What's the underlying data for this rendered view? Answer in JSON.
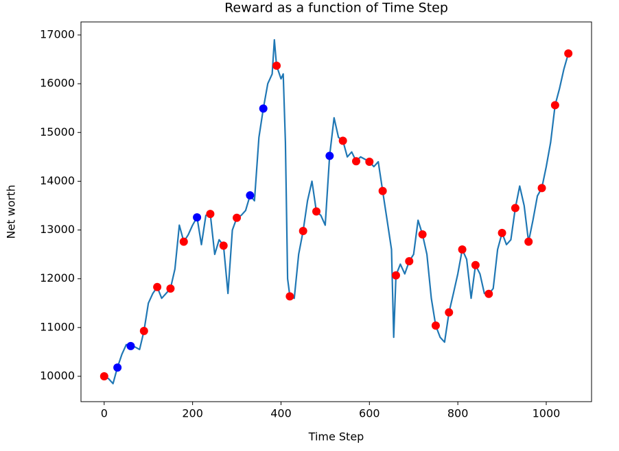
{
  "chart_data": {
    "type": "line",
    "title": "Reward as a function of Time Step",
    "x_label": "Time Step",
    "y_label": "Net worth",
    "xlim": [
      -52.5,
      1102.5
    ],
    "ylim": [
      9480,
      17267
    ],
    "xticks": [
      0,
      200,
      400,
      600,
      800,
      1000
    ],
    "yticks": [
      10000,
      11000,
      12000,
      13000,
      14000,
      15000,
      16000,
      17000
    ],
    "series": [
      {
        "type": "line",
        "color": "#1f77b4",
        "x": [
          0,
          10,
          20,
          30,
          40,
          50,
          60,
          70,
          80,
          90,
          100,
          110,
          120,
          130,
          140,
          150,
          160,
          170,
          180,
          190,
          200,
          210,
          220,
          230,
          240,
          250,
          260,
          270,
          280,
          290,
          300,
          310,
          320,
          330,
          340,
          350,
          360,
          370,
          380,
          385,
          390,
          400,
          405,
          410,
          415,
          420,
          430,
          440,
          450,
          460,
          470,
          480,
          490,
          500,
          510,
          520,
          530,
          540,
          550,
          560,
          570,
          580,
          590,
          600,
          610,
          620,
          630,
          640,
          650,
          655,
          660,
          670,
          680,
          690,
          700,
          710,
          720,
          730,
          740,
          750,
          760,
          770,
          780,
          790,
          800,
          810,
          820,
          830,
          840,
          850,
          860,
          870,
          880,
          890,
          900,
          910,
          920,
          930,
          940,
          950,
          960,
          970,
          980,
          990,
          1000,
          1010,
          1020,
          1030,
          1040,
          1050
        ],
        "values": [
          10000,
          9950,
          9850,
          10180,
          10450,
          10650,
          10620,
          10600,
          10550,
          10930,
          11500,
          11700,
          11830,
          11600,
          11700,
          11800,
          12200,
          13100,
          12760,
          12900,
          13100,
          13260,
          12700,
          13300,
          13330,
          12500,
          12800,
          12680,
          11700,
          13000,
          13250,
          13300,
          13400,
          13710,
          13600,
          14900,
          15490,
          16000,
          16200,
          16900,
          16370,
          16100,
          16200,
          14800,
          12000,
          11640,
          11600,
          12500,
          12980,
          13600,
          14000,
          13380,
          13300,
          13100,
          14520,
          15300,
          14900,
          14830,
          14500,
          14600,
          14410,
          14500,
          14450,
          14400,
          14300,
          14400,
          13800,
          13200,
          12600,
          10800,
          12070,
          12300,
          12100,
          12360,
          12500,
          13200,
          12910,
          12500,
          11600,
          11040,
          10800,
          10700,
          11310,
          11700,
          12100,
          12600,
          12400,
          11600,
          12280,
          12100,
          11700,
          11690,
          11800,
          12600,
          12940,
          12700,
          12800,
          13450,
          13900,
          13500,
          12760,
          13200,
          13700,
          13860,
          14300,
          14800,
          15560,
          15900,
          16300,
          16620
        ]
      },
      {
        "type": "scatter",
        "x": [
          0,
          30,
          60,
          90,
          120,
          150,
          180,
          210,
          240,
          270,
          300,
          330,
          360,
          390,
          420,
          450,
          480,
          510,
          540,
          570,
          600,
          630,
          660,
          690,
          720,
          750,
          780,
          810,
          840,
          870,
          900,
          930,
          960,
          990,
          1020,
          1050
        ],
        "values": [
          10000,
          10180,
          10620,
          10930,
          11830,
          11800,
          12760,
          13260,
          13330,
          12680,
          13250,
          13710,
          15490,
          16370,
          11640,
          12980,
          13380,
          14520,
          14830,
          14410,
          14400,
          13800,
          12070,
          12360,
          12910,
          11040,
          11310,
          12600,
          12280,
          11690,
          12940,
          13450,
          12760,
          13860,
          15560,
          16620
        ],
        "colors": [
          "red",
          "blue",
          "blue",
          "red",
          "red",
          "red",
          "red",
          "blue",
          "red",
          "red",
          "red",
          "blue",
          "blue",
          "red",
          "red",
          "red",
          "red",
          "blue",
          "red",
          "red",
          "red",
          "red",
          "red",
          "red",
          "red",
          "red",
          "red",
          "red",
          "red",
          "red",
          "red",
          "red",
          "red",
          "red",
          "red",
          "red"
        ]
      }
    ]
  }
}
